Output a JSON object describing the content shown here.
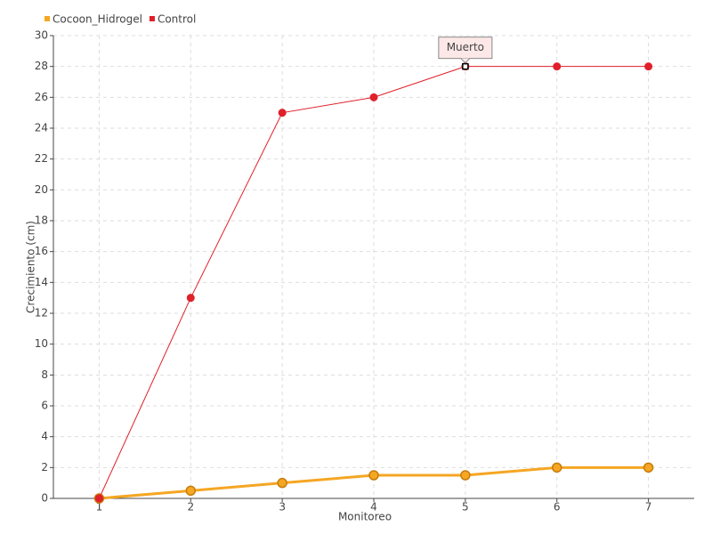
{
  "chart_data": {
    "type": "line",
    "x_label": "Monitoreo",
    "y_label": "Crecimiento (cm)",
    "categories": [
      "1",
      "2",
      "3",
      "4",
      "5",
      "6",
      "7"
    ],
    "series": [
      {
        "name": "Cocoon_Hidrogel",
        "color": "#f5a623",
        "values": [
          0,
          0.5,
          1,
          1.5,
          1.5,
          2,
          2
        ]
      },
      {
        "name": "Control",
        "color": "#e0202a",
        "values": [
          0,
          13,
          25,
          26,
          28,
          28,
          28
        ]
      }
    ],
    "ylim": [
      0,
      30
    ],
    "yticks": [
      0,
      2,
      4,
      6,
      8,
      10,
      12,
      14,
      16,
      18,
      20,
      22,
      24,
      26,
      28,
      30
    ],
    "grid": true,
    "legend": "top-left",
    "annotations": [
      {
        "text": "Muerto",
        "series": 1,
        "index": 4
      }
    ]
  }
}
